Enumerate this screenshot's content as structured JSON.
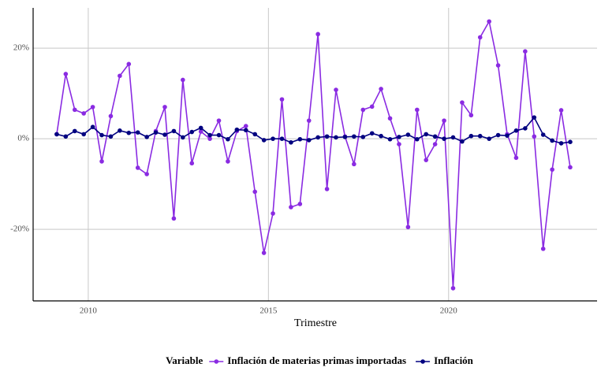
{
  "chart_data": {
    "type": "line",
    "x_label": "Trimestre",
    "legend_title": "Variable",
    "legend": "bottom",
    "grid": true,
    "x": [
      2009.125,
      2009.375,
      2009.625,
      2009.875,
      2010.125,
      2010.375,
      2010.625,
      2010.875,
      2011.125,
      2011.375,
      2011.625,
      2011.875,
      2012.125,
      2012.375,
      2012.625,
      2012.875,
      2013.125,
      2013.375,
      2013.625,
      2013.875,
      2014.125,
      2014.375,
      2014.625,
      2014.875,
      2015.125,
      2015.375,
      2015.625,
      2015.875,
      2016.125,
      2016.375,
      2016.625,
      2016.875,
      2017.125,
      2017.375,
      2017.625,
      2017.875,
      2018.125,
      2018.375,
      2018.625,
      2018.875,
      2019.125,
      2019.375,
      2019.625,
      2019.875,
      2020.125,
      2020.375,
      2020.625,
      2020.875,
      2021.125,
      2021.375,
      2021.625,
      2021.875,
      2022.125,
      2022.375,
      2022.625,
      2022.875,
      2023.125,
      2023.375
    ],
    "series": [
      {
        "name": "Inflación de materias primas importadas",
        "color": "#8a2be2",
        "values": [
          1.0,
          14.3,
          6.4,
          5.6,
          7.0,
          -5.0,
          5.0,
          13.9,
          16.5,
          -6.4,
          -7.8,
          1.7,
          7.0,
          -17.6,
          13.0,
          -5.4,
          1.6,
          0,
          4.0,
          -5.0,
          1.7,
          2.8,
          -11.7,
          -25.2,
          -16.5,
          8.7,
          -15.1,
          -14.4,
          4.0,
          23.1,
          -11.1,
          10.8,
          0.5,
          -5.6,
          6.4,
          7.1,
          11.0,
          4.5,
          -1.2,
          -19.5,
          6.4,
          -4.7,
          -1.2,
          4.0,
          -33.0,
          8.0,
          5.2,
          22.4,
          25.9,
          16.2,
          1.0,
          -4.2,
          19.3,
          0.5,
          -24.3,
          -6.8,
          6.3,
          -6.3
        ]
      },
      {
        "name": "Inflación",
        "color": "#000080",
        "values": [
          1.0,
          0.5,
          1.7,
          1.0,
          2.6,
          0.8,
          0.5,
          1.8,
          1.3,
          1.4,
          0.4,
          1.4,
          0.9,
          1.7,
          0.3,
          1.5,
          2.4,
          0.8,
          0.8,
          -0.1,
          2.0,
          1.9,
          1.0,
          -0.3,
          0.0,
          0.0,
          -0.8,
          -0.1,
          -0.3,
          0.3,
          0.5,
          0.3,
          0.4,
          0.5,
          0.4,
          1.2,
          0.6,
          -0.1,
          0.4,
          0.9,
          -0.1,
          1.0,
          0.5,
          0.0,
          0.3,
          -0.6,
          0.6,
          0.6,
          0.0,
          0.8,
          0.7,
          1.8,
          2.3,
          4.7,
          0.9,
          -0.4,
          -1.0,
          -0.7
        ]
      }
    ],
    "xlim": [
      2008.47,
      2024.12
    ],
    "xticks": [
      2010,
      2015,
      2020
    ],
    "ylim": [
      -35.8,
      28.9
    ],
    "yticks": [
      {
        "value": -20,
        "label": "-20%"
      },
      {
        "value": 0,
        "label": "0%"
      },
      {
        "value": 20,
        "label": "20%"
      }
    ]
  }
}
